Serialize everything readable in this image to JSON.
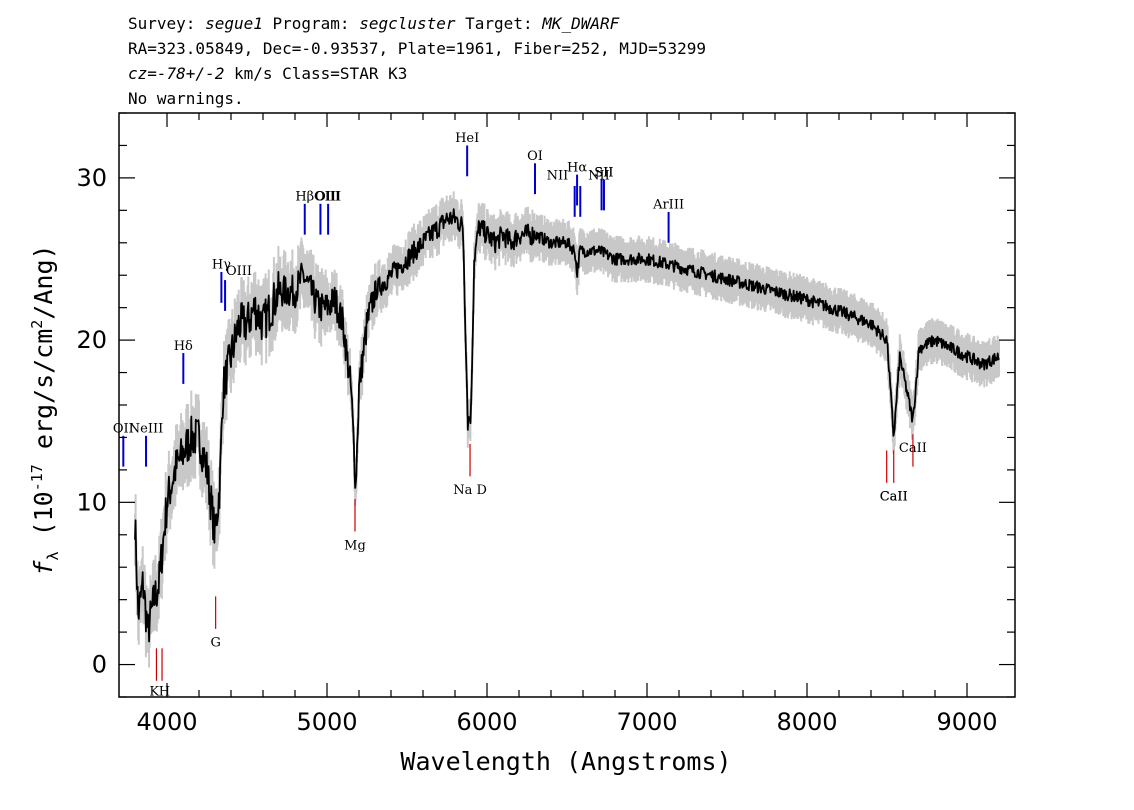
{
  "header": {
    "line1": [
      {
        "t": "Survey: ",
        "i": false
      },
      {
        "t": "segue1",
        "i": true
      },
      {
        "t": " Program: ",
        "i": false
      },
      {
        "t": "segcluster",
        "i": true
      },
      {
        "t": " Target: ",
        "i": false
      },
      {
        "t": "MK_DWARF",
        "i": true
      }
    ],
    "line2": "RA=323.05849, Dec=-0.93537, Plate=1961, Fiber=252, MJD=53299",
    "line3": [
      {
        "t": "cz=-78+/-2",
        "i": true
      },
      {
        "t": " km/s Class=STAR K3",
        "i": false
      }
    ],
    "line4": "No warnings."
  },
  "chart_data": {
    "type": "line",
    "xlabel": "Wavelength (Angstroms)",
    "ylabel": "f_λ (10^-17 erg/s/cm^2/Ang)",
    "xlim": [
      3700,
      9300
    ],
    "ylim": [
      -2,
      34
    ],
    "xticks": [
      4000,
      5000,
      6000,
      7000,
      8000,
      9000
    ],
    "yticks": [
      0,
      10,
      20,
      30
    ],
    "series": [
      {
        "color": "#000000",
        "error_color": "#c8c8c8",
        "points": [
          [
            3800,
            9
          ],
          [
            3820,
            3
          ],
          [
            3850,
            5
          ],
          [
            3880,
            2
          ],
          [
            3920,
            4
          ],
          [
            3950,
            5
          ],
          [
            3980,
            8
          ],
          [
            4000,
            10
          ],
          [
            4050,
            12
          ],
          [
            4100,
            13
          ],
          [
            4150,
            14
          ],
          [
            4200,
            14
          ],
          [
            4250,
            12
          ],
          [
            4300,
            8
          ],
          [
            4330,
            11
          ],
          [
            4350,
            17
          ],
          [
            4400,
            19
          ],
          [
            4450,
            21
          ],
          [
            4500,
            21
          ],
          [
            4550,
            22
          ],
          [
            4600,
            21
          ],
          [
            4650,
            22
          ],
          [
            4700,
            23
          ],
          [
            4750,
            23
          ],
          [
            4800,
            23
          ],
          [
            4850,
            24
          ],
          [
            4900,
            23
          ],
          [
            4950,
            22
          ],
          [
            5000,
            22
          ],
          [
            5050,
            22.5
          ],
          [
            5100,
            21
          ],
          [
            5150,
            17
          ],
          [
            5180,
            11
          ],
          [
            5200,
            17
          ],
          [
            5250,
            21
          ],
          [
            5300,
            23
          ],
          [
            5400,
            24
          ],
          [
            5500,
            25
          ],
          [
            5600,
            26
          ],
          [
            5700,
            27
          ],
          [
            5750,
            27.5
          ],
          [
            5800,
            27.5
          ],
          [
            5850,
            27
          ],
          [
            5880,
            15
          ],
          [
            5900,
            15.5
          ],
          [
            5920,
            25
          ],
          [
            5950,
            27
          ],
          [
            6000,
            26.5
          ],
          [
            6050,
            26
          ],
          [
            6100,
            26.5
          ],
          [
            6150,
            26
          ],
          [
            6200,
            26.5
          ],
          [
            6300,
            26.5
          ],
          [
            6400,
            26
          ],
          [
            6500,
            26
          ],
          [
            6550,
            25.5
          ],
          [
            6562,
            24
          ],
          [
            6580,
            25.5
          ],
          [
            6700,
            25.5
          ],
          [
            6800,
            25
          ],
          [
            7000,
            25
          ],
          [
            7200,
            24.5
          ],
          [
            7400,
            24
          ],
          [
            7600,
            23.5
          ],
          [
            7800,
            23
          ],
          [
            8000,
            22.5
          ],
          [
            8200,
            21.8
          ],
          [
            8400,
            21
          ],
          [
            8500,
            20
          ],
          [
            8542,
            14
          ],
          [
            8580,
            19
          ],
          [
            8662,
            15
          ],
          [
            8700,
            19.5
          ],
          [
            8800,
            20
          ],
          [
            8900,
            19.5
          ],
          [
            9000,
            19
          ],
          [
            9100,
            18.5
          ],
          [
            9200,
            19
          ]
        ]
      }
    ],
    "emission_lines": [
      {
        "label": "OII",
        "x": 3727,
        "y1": 12.2,
        "y2": 14.1,
        "lx": 3727,
        "ly": 14.3
      },
      {
        "label": "NeIII",
        "x": 3869,
        "y1": 12.2,
        "y2": 14.1,
        "lx": 3869,
        "ly": 14.3
      },
      {
        "label": "Hδ",
        "x": 4102,
        "y1": 17.3,
        "y2": 19.2,
        "lx": 4102,
        "ly": 19.4
      },
      {
        "label": "Hγ",
        "x": 4340,
        "y1": 22.3,
        "y2": 24.2,
        "lx": 4340,
        "ly": 24.4
      },
      {
        "label": "OIII",
        "x": 4363,
        "y1": 21.8,
        "y2": 23.7,
        "lx": 4450,
        "ly": 24.0
      },
      {
        "label": "Hβ",
        "x": 4861,
        "y1": 26.5,
        "y2": 28.4,
        "lx": 4861,
        "ly": 28.6
      },
      {
        "label": "OIII",
        "x": 4959,
        "y1": 26.5,
        "y2": 28.4,
        "lx": 5000,
        "ly": 28.6
      },
      {
        "label": "OIII",
        "x": 5007,
        "y1": 26.5,
        "y2": 28.4,
        "lx": 5007,
        "ly": 28.6
      },
      {
        "label": "HeI",
        "x": 5876,
        "y1": 30.1,
        "y2": 32.0,
        "lx": 5876,
        "ly": 32.2
      },
      {
        "label": "OI",
        "x": 6300,
        "y1": 29.0,
        "y2": 30.9,
        "lx": 6300,
        "ly": 31.1
      },
      {
        "label": "NII",
        "x": 6548,
        "y1": 27.6,
        "y2": 29.5,
        "lx": 6440,
        "ly": 29.9
      },
      {
        "label": "Hα",
        "x": 6563,
        "y1": 28.3,
        "y2": 30.2,
        "lx": 6563,
        "ly": 30.4
      },
      {
        "label": "NII",
        "x": 6583,
        "y1": 27.6,
        "y2": 29.5,
        "lx": 6700,
        "ly": 29.9
      },
      {
        "label": "SII",
        "x": 6716,
        "y1": 28.0,
        "y2": 29.9,
        "lx": 6730,
        "ly": 30.1
      },
      {
        "label": "SII",
        "x": 6731,
        "y1": 28.0,
        "y2": 29.9,
        "lx": 6731,
        "ly": 30.1
      },
      {
        "label": "ArIII",
        "x": 7135,
        "y1": 26.0,
        "y2": 27.9,
        "lx": 7135,
        "ly": 28.1
      }
    ],
    "absorption_lines": [
      {
        "label": "K",
        "x": 3934,
        "y1": -1,
        "y2": 1,
        "lx": 3920,
        "ly": -1.9
      },
      {
        "label": "H",
        "x": 3969,
        "y1": -1,
        "y2": 1,
        "lx": 3984,
        "ly": -1.9
      },
      {
        "label": "G",
        "x": 4304,
        "y1": 2.2,
        "y2": 4.2,
        "lx": 4304,
        "ly": 1.1
      },
      {
        "label": "Mg",
        "x": 5175,
        "y1": 8.2,
        "y2": 10.2,
        "lx": 5175,
        "ly": 7.1
      },
      {
        "label": "Na D",
        "x": 5894,
        "y1": 11.6,
        "y2": 13.6,
        "lx": 5894,
        "ly": 10.5
      },
      {
        "label": "CaII",
        "x": 8498,
        "y1": 11.2,
        "y2": 13.2,
        "lx": 8542,
        "ly": 10.1
      },
      {
        "label": "CaII",
        "x": 8542,
        "y1": 11.2,
        "y2": 13.2,
        "lx": 8542,
        "ly": 10.1
      },
      {
        "label": "CaII",
        "x": 8662,
        "y1": 12.2,
        "y2": 14.2,
        "lx": 8662,
        "ly": 13.1
      }
    ],
    "colors": {
      "emission": "#0000cc",
      "absorption": "#cc0000",
      "spectrum": "#000000",
      "error": "#c8c8c8"
    }
  }
}
